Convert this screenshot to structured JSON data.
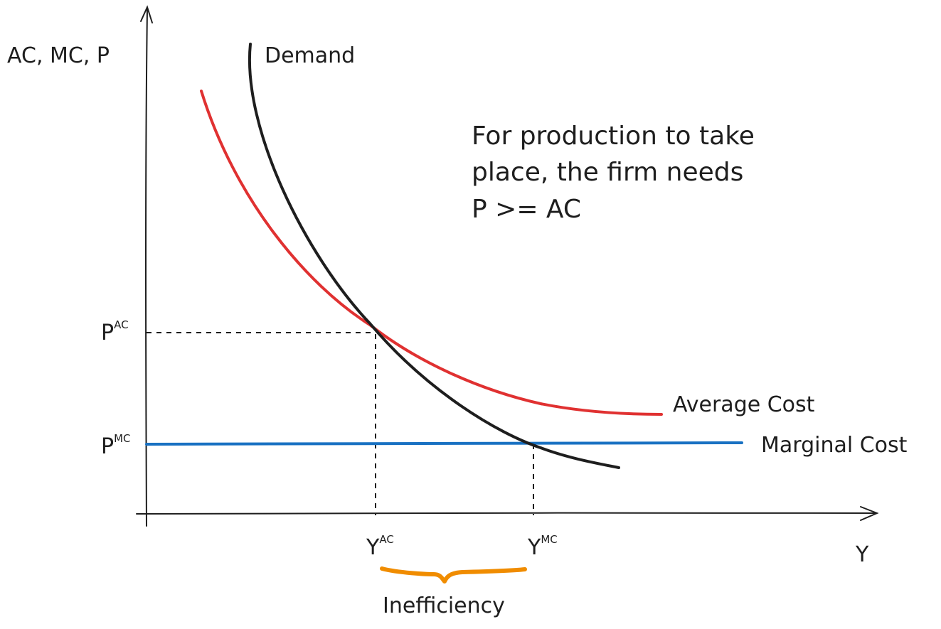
{
  "axes": {
    "y_label": "AC, MC, P",
    "x_label": "Y"
  },
  "curves": {
    "demand": {
      "label": "Demand",
      "color": "#1e1e1e"
    },
    "average_cost": {
      "label": "Average Cost",
      "color": "#e03131"
    },
    "marginal_cost": {
      "label": "Marginal Cost",
      "color": "#1971c2"
    }
  },
  "ticks": {
    "p_ac": {
      "base": "P",
      "sup": "AC"
    },
    "p_mc": {
      "base": "P",
      "sup": "MC"
    },
    "y_ac": {
      "base": "Y",
      "sup": "AC"
    },
    "y_mc": {
      "base": "Y",
      "sup": "MC"
    }
  },
  "note": {
    "lines": [
      "For production to take",
      "place, the firm needs",
      "P >= AC"
    ]
  },
  "brace": {
    "label": "Inefficiency",
    "color": "#f08c00"
  }
}
